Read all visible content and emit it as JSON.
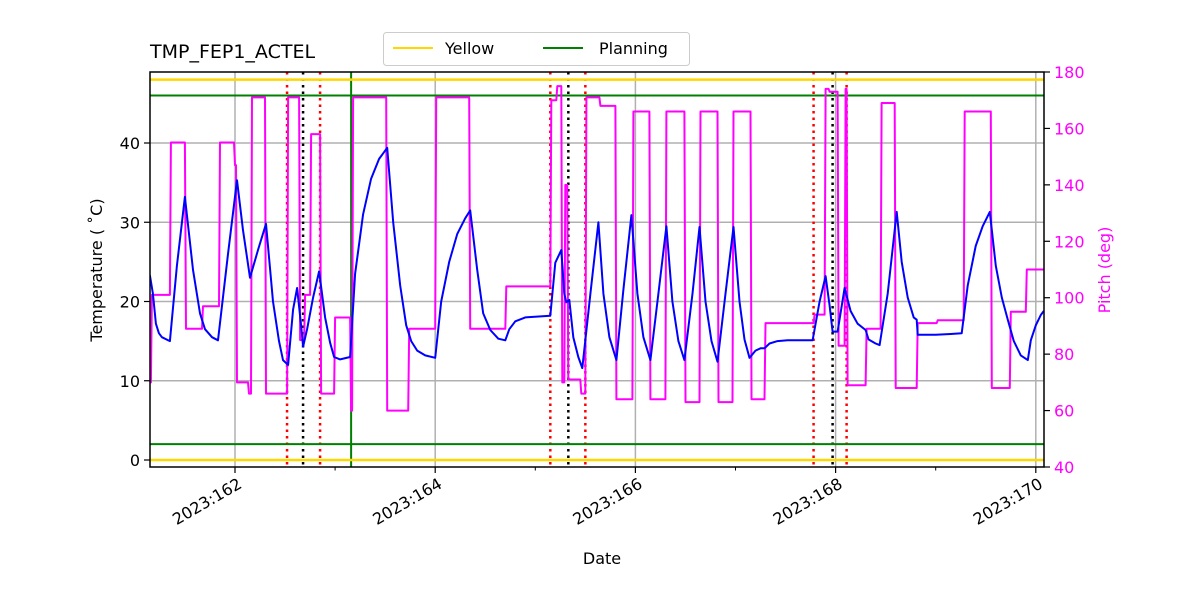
{
  "chart_data": {
    "type": "line",
    "title": "TMP_FEP1_ACTEL",
    "xlabel": "Date",
    "ylabel": "Temperature ($^\\circ$C)",
    "ylabel_display": "Temperature ( ˚C)",
    "y2label": "Pitch (deg)",
    "xlim": [
      161.15,
      170.08
    ],
    "ylim": [
      -0.9,
      48.9
    ],
    "y2lim": [
      40,
      180
    ],
    "x_ticks": [
      162,
      164,
      166,
      168,
      170
    ],
    "x_tick_labels": [
      "2023:162",
      "2023:164",
      "2023:166",
      "2023:168",
      "2023:170"
    ],
    "x_minor_ticks": [
      163,
      165,
      167,
      169
    ],
    "y_ticks": [
      0,
      10,
      20,
      30,
      40
    ],
    "y2_ticks": [
      40,
      60,
      80,
      100,
      120,
      140,
      160,
      180
    ],
    "grid": true,
    "legend": {
      "position": "top-center-above-plot",
      "entries": [
        {
          "label": "Yellow",
          "color": "#ffd700"
        },
        {
          "label": "Planning",
          "color": "#008000"
        }
      ]
    },
    "limits": {
      "yellow": [
        0,
        48
      ],
      "planning": [
        2,
        46
      ]
    },
    "vertical_lines": {
      "planning_green": [
        163.16
      ],
      "red_dotted": [
        162.52,
        162.85,
        165.15,
        165.5,
        167.78,
        168.11
      ],
      "black_dotted": [
        162.68,
        165.33,
        167.97
      ]
    },
    "series": [
      {
        "name": "TMP_FEP1_ACTEL",
        "axis": "left",
        "color": "#0000ff",
        "x": [
          161.15,
          161.18,
          161.21,
          161.24,
          161.27,
          161.35,
          161.42,
          161.5,
          161.58,
          161.65,
          161.7,
          161.77,
          161.83,
          161.93,
          162.02,
          162.08,
          162.15,
          162.23,
          162.31,
          162.38,
          162.44,
          162.48,
          162.53,
          162.58,
          162.62,
          162.66,
          162.68,
          162.72,
          162.78,
          162.84,
          162.9,
          162.95,
          162.99,
          163.05,
          163.15,
          163.2,
          163.28,
          163.36,
          163.44,
          163.52,
          163.58,
          163.65,
          163.71,
          163.76,
          163.82,
          163.9,
          164.0,
          164.06,
          164.14,
          164.22,
          164.3,
          164.35,
          164.42,
          164.48,
          164.55,
          164.63,
          164.7,
          164.74,
          164.8,
          164.9,
          165.15,
          165.2,
          165.26,
          165.29,
          165.31,
          165.34,
          165.38,
          165.43,
          165.47,
          165.55,
          165.63,
          165.68,
          165.74,
          165.81,
          165.88,
          165.96,
          166.02,
          166.08,
          166.15,
          166.23,
          166.31,
          166.37,
          166.43,
          166.49,
          166.57,
          166.64,
          166.7,
          166.76,
          166.82,
          166.9,
          166.98,
          167.04,
          167.09,
          167.14,
          167.2,
          167.25,
          167.29,
          167.34,
          167.42,
          167.52,
          167.64,
          167.77,
          167.84,
          167.9,
          167.94,
          167.97,
          168.02,
          168.09,
          168.15,
          168.22,
          168.3,
          168.33,
          168.4,
          168.44,
          168.52,
          168.61,
          168.66,
          168.72,
          168.78,
          168.81,
          168.82,
          169.0,
          169.15,
          169.26,
          169.32,
          169.4,
          169.47,
          169.54,
          169.6,
          169.66,
          169.72,
          169.78,
          169.85,
          169.92,
          169.95,
          170.0,
          170.05,
          170.08
        ],
        "values": [
          23.3,
          21.0,
          17.2,
          16.0,
          15.5,
          15.0,
          24.5,
          33.2,
          24.0,
          18.5,
          16.5,
          15.5,
          15.1,
          26.0,
          35.3,
          29.0,
          23.0,
          26.5,
          29.8,
          20.0,
          15.0,
          12.6,
          12.0,
          19.0,
          21.7,
          17.0,
          14.3,
          16.5,
          20.5,
          23.8,
          18.0,
          14.8,
          13.0,
          12.7,
          13.0,
          23.5,
          31.0,
          35.5,
          38.0,
          39.4,
          30.0,
          22.0,
          17.0,
          15.0,
          13.8,
          13.2,
          12.9,
          20.0,
          25.0,
          28.5,
          30.5,
          31.5,
          24.0,
          18.5,
          16.4,
          15.3,
          15.1,
          16.5,
          17.5,
          18.0,
          18.2,
          24.9,
          26.5,
          21.0,
          19.9,
          20.2,
          15.5,
          13.0,
          11.6,
          21.0,
          30.0,
          21.0,
          15.5,
          12.6,
          21.5,
          30.9,
          21.0,
          15.5,
          12.6,
          21.0,
          29.5,
          20.0,
          15.0,
          12.6,
          21.0,
          29.4,
          20.0,
          15.0,
          12.4,
          21.0,
          29.4,
          20.0,
          15.2,
          12.9,
          13.8,
          14.1,
          14.1,
          14.7,
          15.0,
          15.1,
          15.1,
          15.1,
          20.0,
          23.2,
          19.5,
          16.2,
          16.2,
          21.7,
          18.8,
          17.2,
          16.4,
          15.2,
          14.7,
          14.5,
          21.0,
          31.3,
          25.0,
          20.5,
          18.0,
          17.7,
          15.8,
          15.8,
          15.9,
          16.0,
          22.0,
          27.0,
          29.5,
          31.3,
          24.5,
          20.5,
          17.7,
          15.0,
          13.2,
          12.6,
          15.1,
          17.0,
          18.3,
          18.8
        ]
      },
      {
        "name": "Pitch",
        "axis": "right",
        "color": "#ff00ff",
        "x": [
          161.15,
          161.16,
          161.17,
          161.18,
          161.35,
          161.36,
          161.5,
          161.51,
          161.67,
          161.68,
          161.84,
          161.85,
          161.99,
          162.0,
          162.01,
          162.02,
          162.13,
          162.14,
          162.16,
          162.17,
          162.3,
          162.31,
          162.52,
          162.53,
          162.64,
          162.65,
          162.69,
          162.7,
          162.75,
          162.76,
          162.85,
          162.86,
          162.99,
          163.0,
          163.15,
          163.16,
          163.17,
          163.18,
          163.51,
          163.52,
          163.73,
          163.74,
          164.0,
          164.01,
          164.34,
          164.35,
          164.7,
          164.71,
          165.15,
          165.16,
          165.21,
          165.22,
          165.26,
          165.27,
          165.29,
          165.3,
          165.32,
          165.33,
          165.45,
          165.46,
          165.5,
          165.51,
          165.64,
          165.65,
          165.8,
          165.81,
          165.97,
          165.98,
          166.14,
          166.15,
          166.3,
          166.31,
          166.49,
          166.5,
          166.64,
          166.65,
          166.82,
          166.83,
          166.97,
          166.98,
          167.15,
          167.16,
          167.29,
          167.3,
          167.78,
          167.79,
          167.89,
          167.9,
          167.93,
          167.94,
          168.02,
          168.03,
          168.09,
          168.1,
          168.11,
          168.12,
          168.3,
          168.31,
          168.45,
          168.46,
          168.59,
          168.6,
          168.81,
          168.82,
          169.01,
          169.02,
          169.28,
          169.29,
          169.55,
          169.56,
          169.74,
          169.75,
          169.9,
          169.91,
          170.08
        ],
        "values": [
          70,
          70,
          101,
          101,
          101,
          155,
          155,
          89,
          89,
          97,
          97,
          155,
          155,
          147,
          147,
          70,
          70,
          66,
          66,
          171,
          171,
          66,
          66,
          171,
          171,
          85,
          85,
          101,
          101,
          158,
          158,
          66,
          66,
          93,
          93,
          60,
          60,
          171,
          171,
          60,
          60,
          89,
          89,
          171,
          171,
          89,
          89,
          104,
          104,
          170,
          170,
          175,
          175,
          70,
          70,
          140,
          140,
          71,
          71,
          66,
          66,
          171,
          171,
          168,
          168,
          64,
          64,
          166,
          166,
          64,
          64,
          166,
          166,
          63,
          63,
          166,
          166,
          63,
          63,
          166,
          166,
          64,
          64,
          91,
          91,
          94,
          94,
          174,
          174,
          173,
          173,
          83,
          83,
          174,
          174,
          69,
          69,
          89,
          89,
          169,
          169,
          68,
          68,
          91,
          91,
          92,
          92,
          166,
          166,
          68,
          68,
          95,
          95,
          110,
          110
        ]
      }
    ]
  }
}
